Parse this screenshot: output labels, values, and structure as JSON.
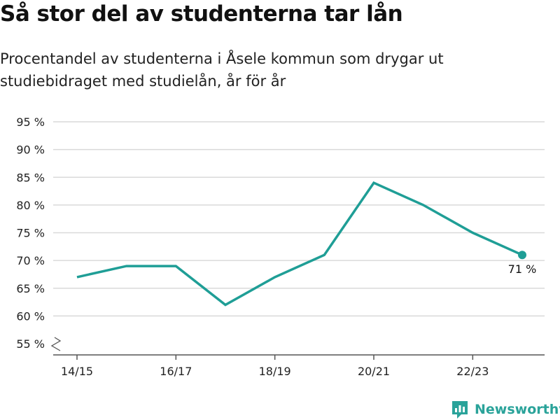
{
  "header": {
    "title": "Så stor del av studenterna tar lån",
    "subtitle": "Procentandel av studenterna i Åsele kommun som drygar ut studiebidraget med studielån, år för år"
  },
  "brand": {
    "name": "Newsworthy",
    "icon": "newsworthy-logo-icon"
  },
  "colors": {
    "line": "#1f9e96",
    "grid": "#d9d9d9",
    "axis": "#555555",
    "text": "#222222"
  },
  "chart_data": {
    "type": "line",
    "x": [
      "14/15",
      "15/16",
      "16/17",
      "17/18",
      "18/19",
      "19/20",
      "20/21",
      "21/22",
      "22/23",
      "23/24"
    ],
    "xtick_labels": [
      "14/15",
      "16/17",
      "18/19",
      "20/21",
      "22/23"
    ],
    "series": [
      {
        "values": [
          67,
          69,
          69,
          62,
          67,
          71,
          84,
          80,
          75,
          71
        ]
      }
    ],
    "ylim": [
      55,
      95
    ],
    "yticks": [
      55,
      60,
      65,
      70,
      75,
      80,
      85,
      90,
      95
    ],
    "ytick_labels": [
      "55 %",
      "60 %",
      "65 %",
      "70 %",
      "75 %",
      "80 %",
      "85 %",
      "90 %",
      "95 %"
    ],
    "axis_break": true,
    "grid": true,
    "end_label": "71 %"
  }
}
